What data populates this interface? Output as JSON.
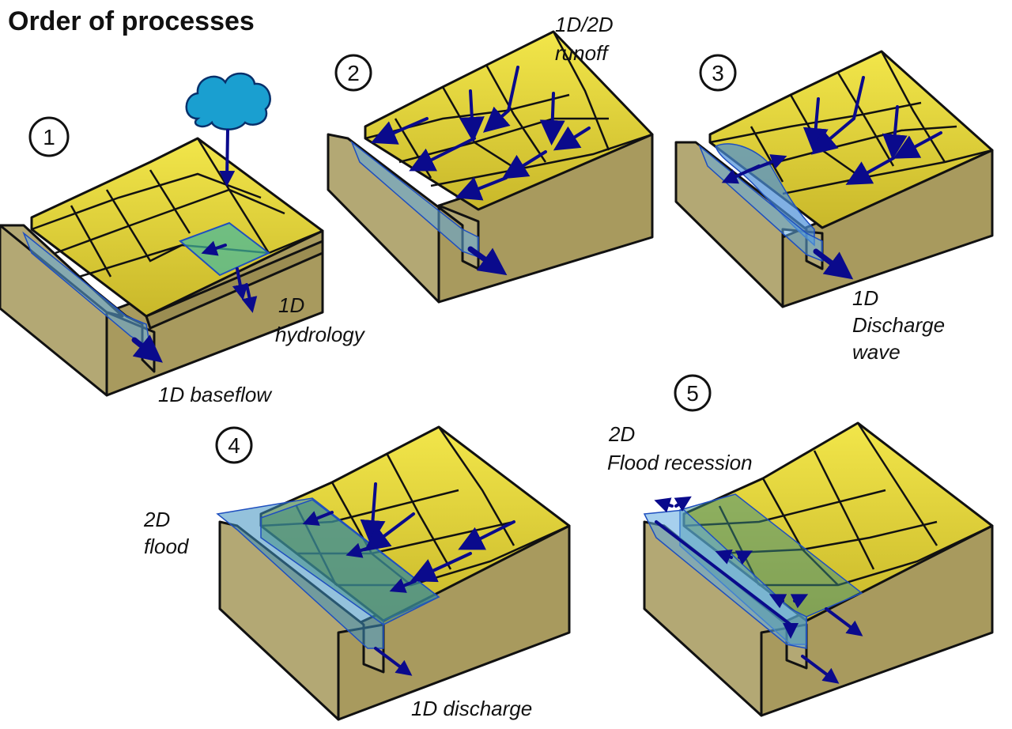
{
  "title": "Order of processes",
  "colors": {
    "terrain_top": "#e8d83a",
    "terrain_side": "#a89a5e",
    "terrain_front": "#b3a874",
    "water": "#5ea9e0",
    "arrow": "#0a0a8c",
    "cloud": "#1a9fd0"
  },
  "steps": [
    {
      "number": "1",
      "labels": [
        "1D baseflow",
        "1D",
        "hydrology"
      ]
    },
    {
      "number": "2",
      "labels": [
        "1D/2D",
        "runoff"
      ]
    },
    {
      "number": "3",
      "labels": [
        "1D",
        "Discharge",
        "wave"
      ]
    },
    {
      "number": "4",
      "labels": [
        "2D",
        "flood",
        "1D discharge"
      ]
    },
    {
      "number": "5",
      "labels": [
        "2D",
        "Flood recession"
      ]
    }
  ]
}
